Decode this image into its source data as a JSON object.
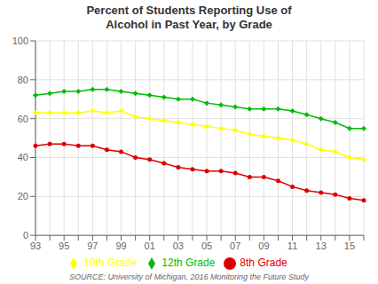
{
  "chart_data": {
    "type": "line",
    "title": "Percent of Students Reporting Use of\nAlcohol in Past Year, by Grade",
    "categories": [
      "93",
      null,
      "95",
      null,
      "97",
      null,
      "99",
      null,
      "01",
      null,
      "03",
      null,
      "05",
      null,
      "07",
      null,
      "09",
      null,
      "11",
      null,
      "13",
      null,
      "15",
      null
    ],
    "series": [
      {
        "name": "8th Grade",
        "color": "#DD0000",
        "marker": "circle",
        "values": [
          46,
          47,
          47,
          46,
          46,
          44,
          43,
          40,
          39,
          37,
          35,
          34,
          33,
          33,
          32,
          30,
          30,
          28,
          25,
          23,
          22,
          21,
          19,
          18
        ]
      },
      {
        "name": "10th Grade",
        "color": "#FFFF00",
        "marker": "diamond",
        "values": [
          63,
          63,
          63,
          63,
          64,
          63,
          64,
          61,
          60,
          59,
          58,
          57,
          56,
          55,
          54,
          52,
          51,
          50,
          49,
          47,
          44,
          43,
          40,
          39
        ]
      },
      {
        "name": "12th Grade",
        "color": "#00BB00",
        "marker": "diamond",
        "values": [
          72,
          73,
          74,
          74,
          75,
          75,
          74,
          73,
          72,
          71,
          70,
          70,
          68,
          67,
          66,
          65,
          65,
          65,
          64,
          62,
          60,
          58,
          55,
          55
        ]
      }
    ],
    "ylim": [
      0,
      100
    ],
    "yticks": [
      0,
      20,
      40,
      60,
      80,
      100
    ],
    "grid": true,
    "legend": "bottom",
    "annotations": [
      "SOURCE: University of Michigan, 2016 Monitoring the Future Study"
    ]
  }
}
